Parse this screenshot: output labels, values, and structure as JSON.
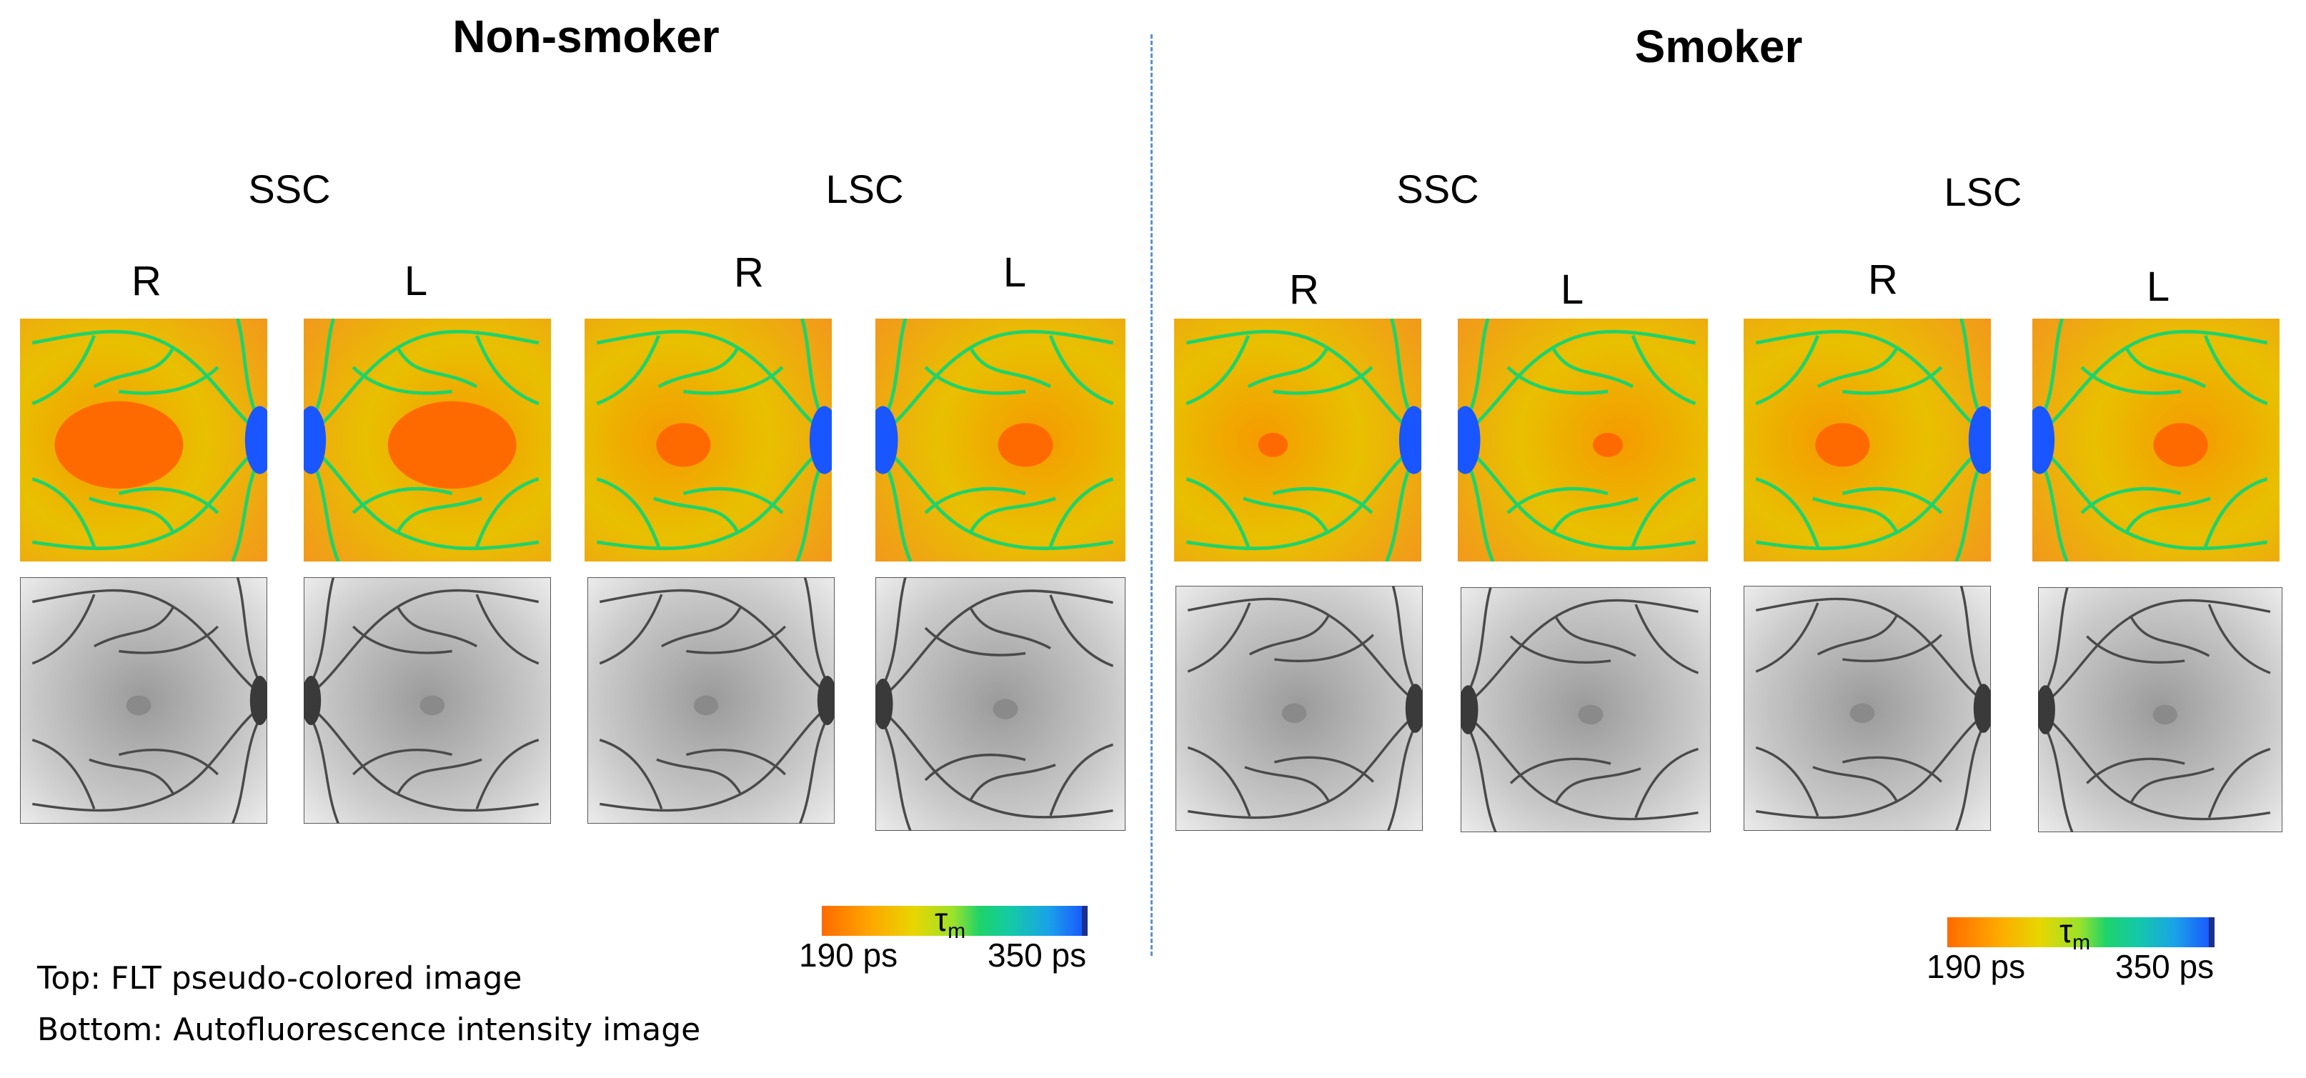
{
  "groups": [
    {
      "title": "Non-smoker",
      "cohorts": [
        {
          "label": "SSC",
          "eyes": [
            "R",
            "L"
          ]
        },
        {
          "label": "LSC",
          "eyes": [
            "R",
            "L"
          ]
        }
      ]
    },
    {
      "title": "Smoker",
      "cohorts": [
        {
          "label": "SSC",
          "eyes": [
            "R",
            "L"
          ]
        },
        {
          "label": "LSC",
          "eyes": [
            "R",
            "L"
          ]
        }
      ]
    }
  ],
  "colorbar": {
    "symbol": "τ",
    "subscript": "m",
    "min_label": "190 ps",
    "max_label": "350 ps",
    "min_ps": 190,
    "max_ps": 350
  },
  "caption": {
    "top": "Top: FLT pseudo-colored image",
    "bottom": "Bottom: Autofluorescence intensity image"
  },
  "colors": {
    "flt_short": "#ff6a00",
    "flt_mid": "#e7d600",
    "flt_green": "#1ed36a",
    "flt_long": "#1a56ff",
    "divider": "#5b8fd4"
  }
}
